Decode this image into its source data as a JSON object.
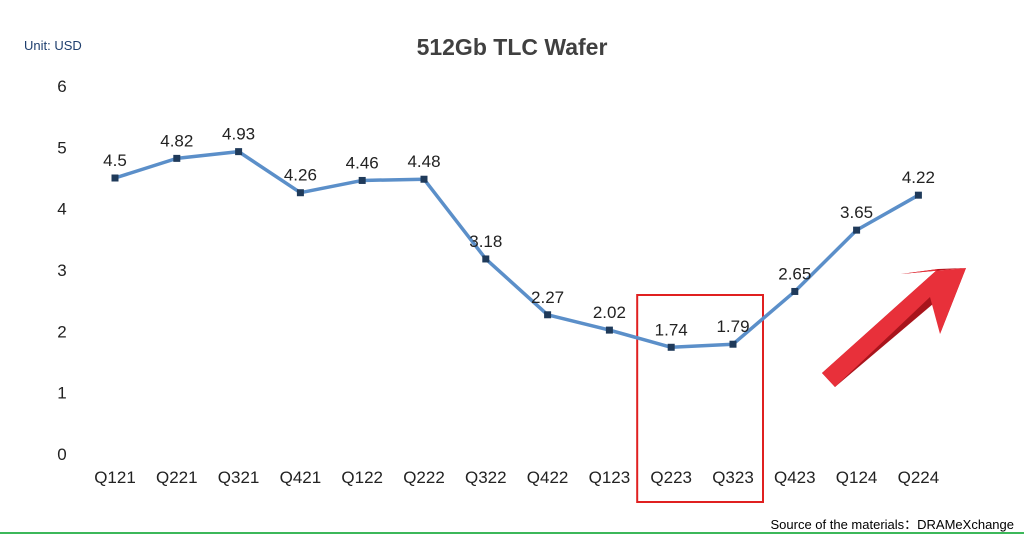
{
  "unit_label": "Unit: USD",
  "source_note": "Source of the materials：DRAMeXchange",
  "colors": {
    "line": "#5b8fc9",
    "marker": "#1f3a5a",
    "highlight_box": "#e02020",
    "arrow": "#e8303a",
    "axis_text": "#222222",
    "divider": "#3cb85a"
  },
  "chart_data": {
    "type": "line",
    "title": "512Gb TLC Wafer",
    "xlabel": "",
    "ylabel": "",
    "ylim": [
      0,
      6
    ],
    "yticks": [
      "0",
      "1",
      "2",
      "3",
      "4",
      "5",
      "6"
    ],
    "grid": false,
    "categories": [
      "Q121",
      "Q221",
      "Q321",
      "Q421",
      "Q122",
      "Q222",
      "Q322",
      "Q422",
      "Q123",
      "Q223",
      "Q323",
      "Q423",
      "Q124",
      "Q224"
    ],
    "series": [
      {
        "values": [
          4.5,
          4.82,
          4.93,
          4.26,
          4.46,
          4.48,
          3.18,
          2.27,
          2.02,
          1.74,
          1.79,
          2.65,
          3.65,
          4.22
        ]
      }
    ],
    "value_labels": [
      "4.5",
      "4.82",
      "4.93",
      "4.26",
      "4.46",
      "4.48",
      "3.18",
      "2.27",
      "2.02",
      "1.74",
      "1.79",
      "2.65",
      "3.65",
      "4.22"
    ],
    "highlight_categories": [
      "Q223",
      "Q323"
    ],
    "annotation": "upward-trend-arrow"
  }
}
